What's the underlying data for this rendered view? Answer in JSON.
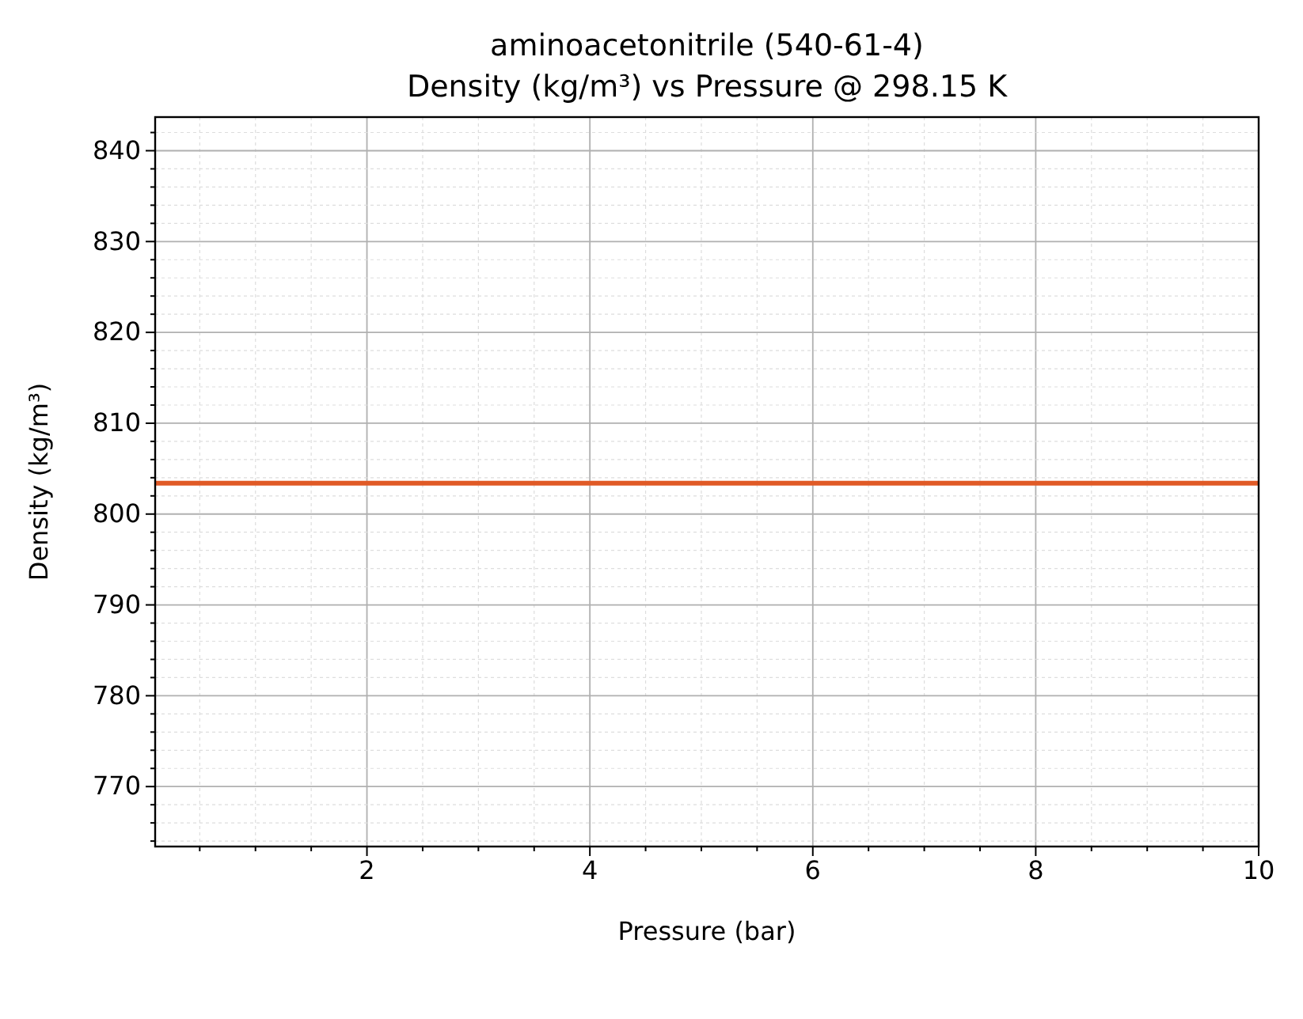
{
  "chart_data": {
    "type": "line",
    "title": "aminoacetonitrile (540-61-4)",
    "subtitle": "Density (kg/m³) vs Pressure @ 298.15 K",
    "xlabel": "Pressure (bar)",
    "ylabel": "Density (kg/m³)",
    "x": [
      0.1,
      10
    ],
    "series": [
      {
        "color": "#e05a26",
        "values": [
          803.4,
          803.4
        ]
      }
    ],
    "xlim": [
      0.1,
      10
    ],
    "ylim": [
      763.4,
      843.7
    ],
    "xticks": [
      {
        "value": 0.5,
        "label": null
      },
      {
        "value": 1,
        "label": null
      },
      {
        "value": 1.5,
        "label": null
      },
      2,
      {
        "value": 2.5,
        "label": null
      },
      {
        "value": 3,
        "label": null
      },
      {
        "value": 3.5,
        "label": null
      },
      4,
      {
        "value": 4.5,
        "label": null
      },
      {
        "value": 5,
        "label": null
      },
      {
        "value": 5.5,
        "label": null
      },
      6,
      {
        "value": 6.5,
        "label": null
      },
      {
        "value": 7,
        "label": null
      },
      {
        "value": 7.5,
        "label": null
      },
      8,
      {
        "value": 8.5,
        "label": null
      },
      {
        "value": 9,
        "label": null
      },
      {
        "value": 9.5,
        "label": null
      },
      10
    ],
    "yticks": [
      {
        "value": 764,
        "label": null
      },
      {
        "value": 766,
        "label": null
      },
      {
        "value": 768,
        "label": null
      },
      770,
      {
        "value": 772,
        "label": null
      },
      {
        "value": 774,
        "label": null
      },
      {
        "value": 776,
        "label": null
      },
      {
        "value": 778,
        "label": null
      },
      780,
      {
        "value": 782,
        "label": null
      },
      {
        "value": 784,
        "label": null
      },
      {
        "value": 786,
        "label": null
      },
      {
        "value": 788,
        "label": null
      },
      790,
      {
        "value": 792,
        "label": null
      },
      {
        "value": 794,
        "label": null
      },
      {
        "value": 796,
        "label": null
      },
      {
        "value": 798,
        "label": null
      },
      800,
      {
        "value": 802,
        "label": null
      },
      {
        "value": 804,
        "label": null
      },
      {
        "value": 806,
        "label": null
      },
      {
        "value": 808,
        "label": null
      },
      810,
      {
        "value": 812,
        "label": null
      },
      {
        "value": 814,
        "label": null
      },
      {
        "value": 816,
        "label": null
      },
      {
        "value": 818,
        "label": null
      },
      820,
      {
        "value": 822,
        "label": null
      },
      {
        "value": 824,
        "label": null
      },
      {
        "value": 826,
        "label": null
      },
      {
        "value": 828,
        "label": null
      },
      830,
      {
        "value": 832,
        "label": null
      },
      {
        "value": 834,
        "label": null
      },
      {
        "value": 836,
        "label": null
      },
      {
        "value": 838,
        "label": null
      },
      840,
      {
        "value": 842,
        "label": null
      }
    ],
    "grid": true,
    "marker": "none",
    "line_style": "solid"
  }
}
